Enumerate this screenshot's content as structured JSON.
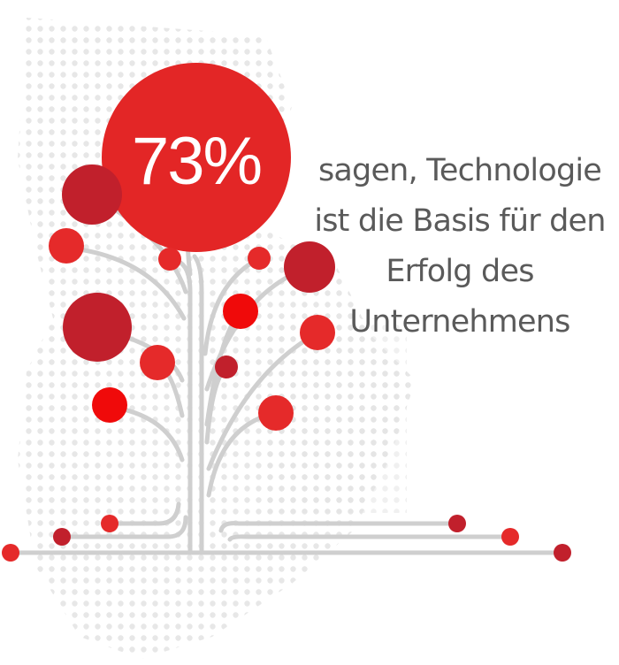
{
  "stat": {
    "value": "73%"
  },
  "caption": {
    "lines": [
      "sagen, Technologie",
      "ist die Basis für den",
      "Erfolg des",
      "Unternehmens"
    ]
  },
  "colors": {
    "highlight": "#e32626",
    "dark": "#c1202c",
    "bright": "#f00a0a",
    "text": "#5a5a5a",
    "stem": "#cfcfcf",
    "dots": "#e3e3e3"
  }
}
